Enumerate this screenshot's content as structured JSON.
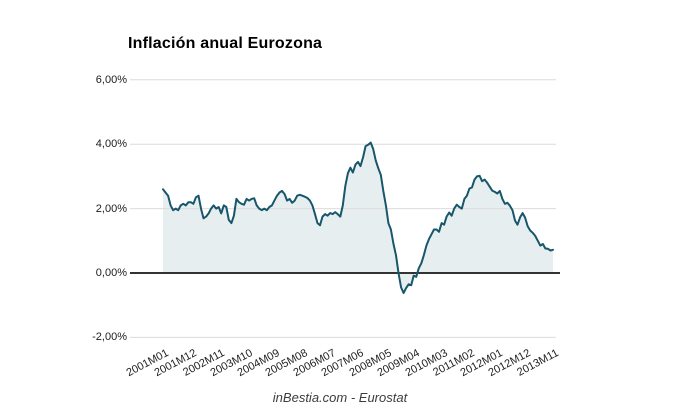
{
  "page": {
    "title": "Inflación anual Eurozona",
    "source_caption": "inBestia.com - Eurostat"
  },
  "chart_data": {
    "type": "area",
    "title": "Inflación anual Eurozona",
    "x_start": "2001M01",
    "x_end": "2013M11",
    "x_frequency": "monthly",
    "x_tick_labels": [
      "2001M01",
      "2001M12",
      "2002M11",
      "2003M10",
      "2004M09",
      "2005M08",
      "2006M07",
      "2007M06",
      "2008M05",
      "2009M04",
      "2010M03",
      "2011M02",
      "2012M01",
      "2012M12",
      "2013M11"
    ],
    "y_ticks": [
      {
        "label": "6,00%",
        "value": 6
      },
      {
        "label": "4,00%",
        "value": 4
      },
      {
        "label": "2,00%",
        "value": 2
      },
      {
        "label": "0,00%",
        "value": 0
      },
      {
        "label": "-2,00%",
        "value": -2
      }
    ],
    "ylim": [
      -2,
      6
    ],
    "grid": "horizontal-only",
    "legend": "none",
    "series": [
      {
        "name": "Inflación anual (%)",
        "values": [
          2.6,
          2.5,
          2.4,
          2.1,
          1.95,
          2.0,
          1.95,
          2.1,
          2.15,
          2.1,
          2.2,
          2.2,
          2.15,
          2.35,
          2.4,
          2.0,
          1.7,
          1.75,
          1.85,
          2.0,
          2.1,
          2.0,
          2.05,
          1.85,
          2.1,
          2.05,
          1.65,
          1.55,
          1.78,
          2.3,
          2.2,
          2.15,
          2.12,
          2.3,
          2.25,
          2.3,
          2.32,
          2.1,
          2.0,
          1.95,
          2.0,
          1.95,
          2.05,
          2.1,
          2.25,
          2.4,
          2.5,
          2.55,
          2.45,
          2.25,
          2.3,
          2.18,
          2.25,
          2.4,
          2.43,
          2.4,
          2.37,
          2.33,
          2.25,
          2.1,
          1.84,
          1.55,
          1.48,
          1.75,
          1.83,
          1.78,
          1.86,
          1.83,
          1.89,
          1.83,
          1.75,
          2.1,
          2.7,
          3.1,
          3.27,
          3.12,
          3.37,
          3.45,
          3.32,
          3.6,
          3.94,
          3.98,
          4.05,
          3.85,
          3.5,
          3.25,
          3.05,
          2.55,
          2.1,
          1.55,
          1.35,
          0.9,
          0.55,
          0.0,
          -0.45,
          -0.62,
          -0.47,
          -0.35,
          -0.38,
          -0.08,
          -0.12,
          0.15,
          0.3,
          0.55,
          0.85,
          1.05,
          1.2,
          1.35,
          1.35,
          1.28,
          1.55,
          1.5,
          1.75,
          1.88,
          1.78,
          2.0,
          2.12,
          2.05,
          2.0,
          2.3,
          2.4,
          2.62,
          2.66,
          2.9,
          3.0,
          3.02,
          2.85,
          2.9,
          2.8,
          2.68,
          2.56,
          2.52,
          2.47,
          2.55,
          2.3,
          2.15,
          2.18,
          2.09,
          1.95,
          1.63,
          1.5,
          1.73,
          1.86,
          1.72,
          1.45,
          1.32,
          1.25,
          1.15,
          1.0,
          0.85,
          0.9,
          0.76,
          0.75,
          0.7,
          0.72
        ]
      }
    ],
    "colors": {
      "line": "#17566b",
      "fill": "#e7eef0",
      "grid": "#dcdcdc",
      "zero_axis": "#333333"
    }
  }
}
